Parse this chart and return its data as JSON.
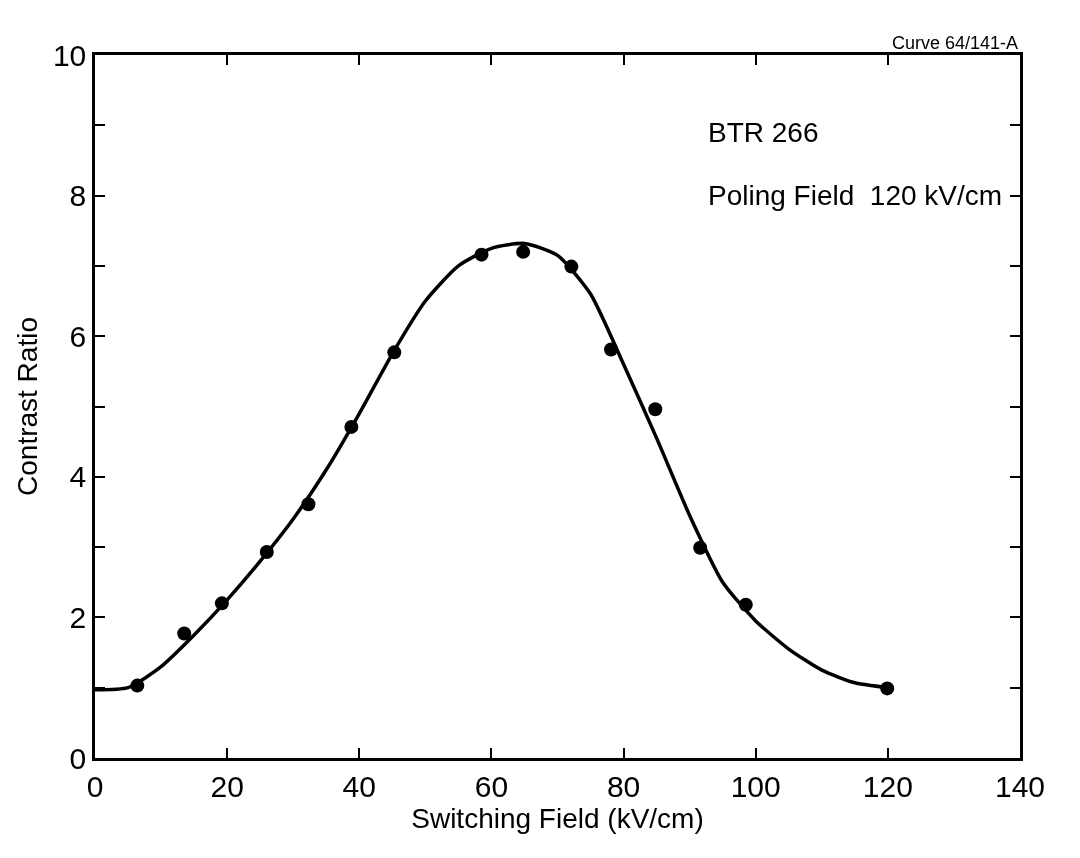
{
  "chart_data": {
    "type": "scatter",
    "xlabel": "Switching Field (kV/cm)",
    "ylabel": "Contrast Ratio",
    "annotations": [
      "Curve 64/141-A",
      "BTR 266",
      "Poling Field  120 kV/cm"
    ],
    "series": [
      {
        "color": "#000000",
        "marker": "circle",
        "x": [
          6.4,
          13.5,
          19.2,
          26,
          32.3,
          38.8,
          45.3,
          58.5,
          64.8,
          72.1,
          78.1,
          84.8,
          91.6,
          98.5,
          119.9
        ],
        "values": [
          1.03,
          1.77,
          2.2,
          2.93,
          3.61,
          4.71,
          5.77,
          7.16,
          7.2,
          6.99,
          5.81,
          4.96,
          2.99,
          2.18,
          0.99
        ]
      },
      {
        "type": "line",
        "color": "#000000",
        "marker": "none",
        "line_style": "solid",
        "x": [
          0,
          5,
          10,
          15,
          20,
          25,
          30,
          35,
          40,
          45,
          50,
          55,
          60,
          65,
          70,
          75,
          80,
          85,
          90,
          95,
          100,
          105,
          110,
          115,
          120
        ],
        "values": [
          0.97,
          1.0,
          1.3,
          1.75,
          2.25,
          2.8,
          3.4,
          4.1,
          4.9,
          5.75,
          6.5,
          7.0,
          7.25,
          7.32,
          7.15,
          6.6,
          5.6,
          4.55,
          3.45,
          2.5,
          1.95,
          1.55,
          1.25,
          1.07,
          1.0
        ]
      }
    ],
    "xlim": [
      0,
      140
    ],
    "ylim": [
      0,
      10
    ],
    "xticks": [
      0,
      20,
      40,
      60,
      80,
      100,
      120,
      140
    ],
    "yticks": [
      0,
      {
        "value": 1,
        "label": null
      },
      2,
      {
        "value": 3,
        "label": null
      },
      4,
      {
        "value": 5,
        "label": null
      },
      6,
      {
        "value": 7,
        "label": null
      },
      8,
      {
        "value": 9,
        "label": null
      },
      10
    ]
  }
}
